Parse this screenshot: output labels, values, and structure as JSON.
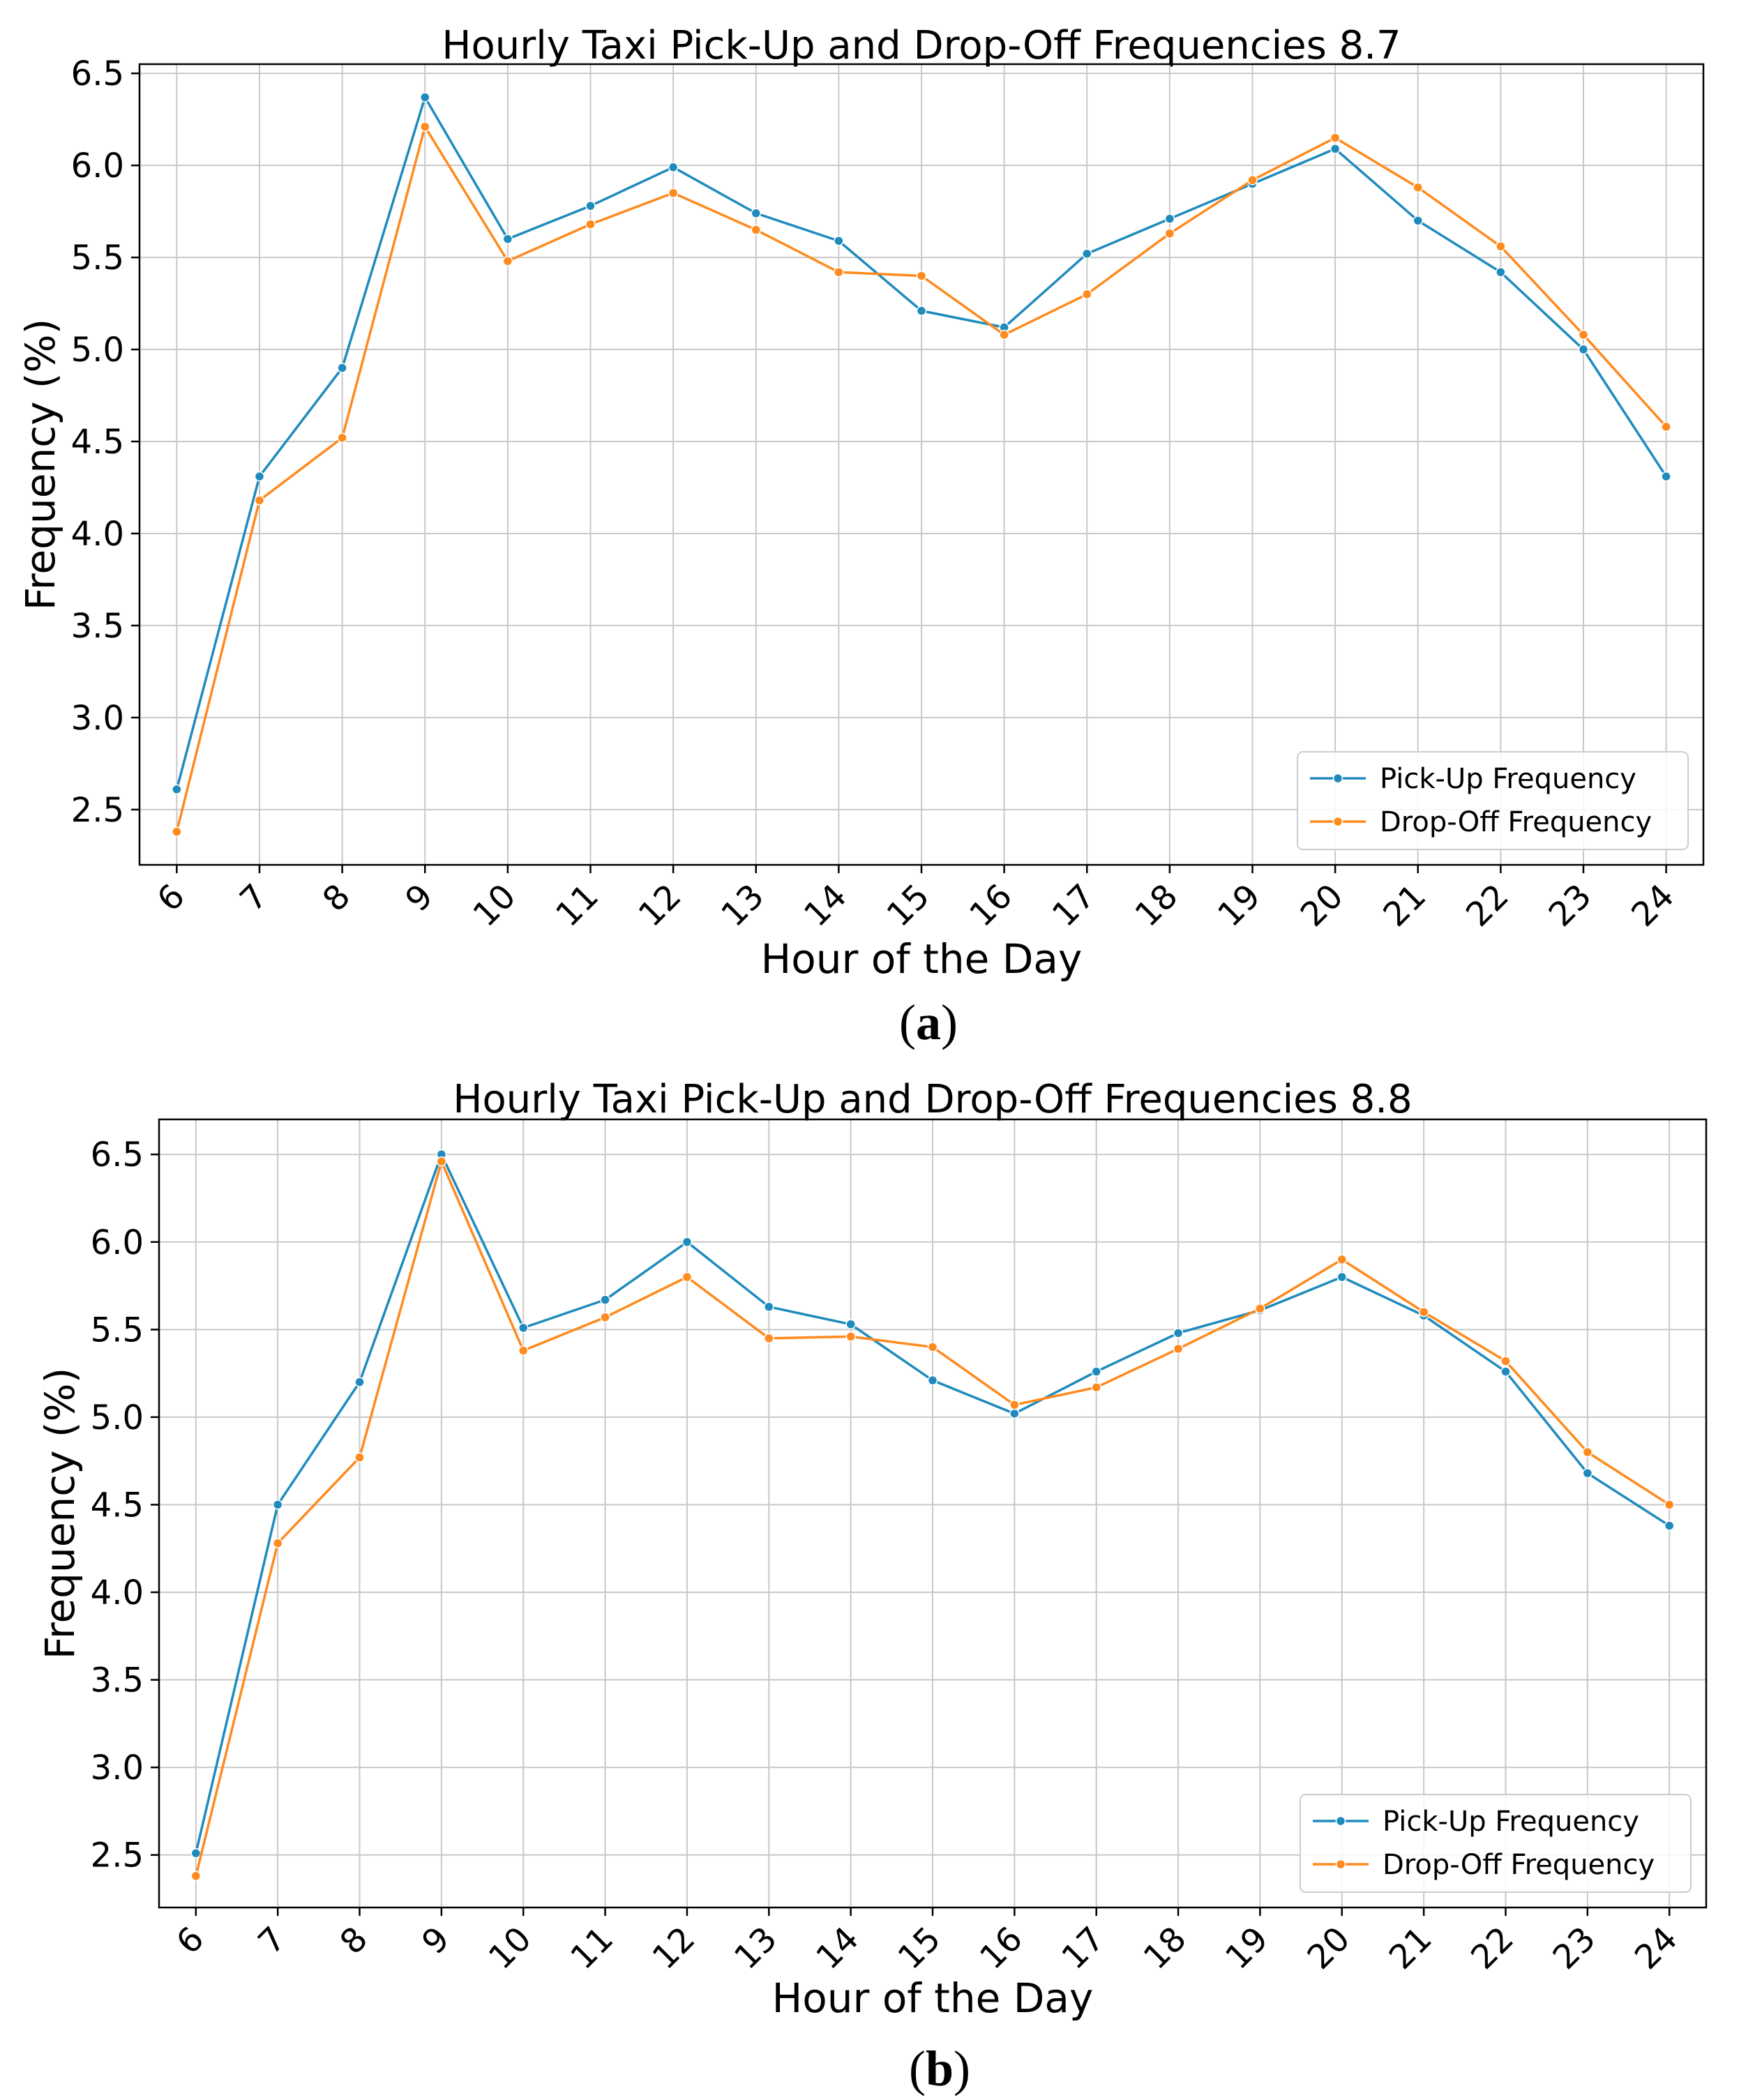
{
  "colors": {
    "pickup": "#1f8bbd",
    "dropoff": "#ff8a1e",
    "grid": "#c8c8c8",
    "axis": "#000000"
  },
  "chart_data": [
    {
      "type": "line",
      "title": "Hourly Taxi Pick-Up and Drop-Off Frequencies 8.7",
      "xlabel": "Hour of the Day",
      "ylabel": "Frequency (%)",
      "caption": {
        "open": "(",
        "letter": "a",
        "close": ")"
      },
      "x": [
        6,
        7,
        8,
        9,
        10,
        11,
        12,
        13,
        14,
        15,
        16,
        17,
        18,
        19,
        20,
        21,
        22,
        23,
        24
      ],
      "x_tick_labels": [
        "6",
        "7",
        "8",
        "9",
        "10",
        "11",
        "12",
        "13",
        "14",
        "15",
        "16",
        "17",
        "18",
        "19",
        "20",
        "21",
        "22",
        "23",
        "24"
      ],
      "y_ticks": [
        2.5,
        3.0,
        3.5,
        4.0,
        4.5,
        5.0,
        5.5,
        6.0,
        6.5
      ],
      "y_tick_labels": [
        "2.5",
        "3.0",
        "3.5",
        "4.0",
        "4.5",
        "5.0",
        "5.5",
        "6.0",
        "6.5"
      ],
      "ylim": [
        2.2,
        6.55
      ],
      "grid": true,
      "legend_position": "lower-right",
      "series": [
        {
          "name": "Pick-Up Frequency",
          "color_key": "pickup",
          "values": [
            2.61,
            4.31,
            4.9,
            6.37,
            5.6,
            5.78,
            5.99,
            5.74,
            5.59,
            5.21,
            5.12,
            5.52,
            5.71,
            5.9,
            6.09,
            5.7,
            5.42,
            5.0,
            4.31
          ]
        },
        {
          "name": "Drop-Off Frequency",
          "color_key": "dropoff",
          "values": [
            2.38,
            4.18,
            4.52,
            6.21,
            5.48,
            5.68,
            5.85,
            5.65,
            5.42,
            5.4,
            5.08,
            5.3,
            5.63,
            5.92,
            6.15,
            5.88,
            5.56,
            5.08,
            4.58
          ]
        }
      ]
    },
    {
      "type": "line",
      "title": "Hourly Taxi Pick-Up and Drop-Off Frequencies 8.8",
      "xlabel": "Hour of the Day",
      "ylabel": "Frequency (%)",
      "caption": {
        "open": "(",
        "letter": "b",
        "close": ")"
      },
      "x": [
        6,
        7,
        8,
        9,
        10,
        11,
        12,
        13,
        14,
        15,
        16,
        17,
        18,
        19,
        20,
        21,
        22,
        23,
        24
      ],
      "x_tick_labels": [
        "6",
        "7",
        "8",
        "9",
        "10",
        "11",
        "12",
        "13",
        "14",
        "15",
        "16",
        "17",
        "18",
        "19",
        "20",
        "21",
        "22",
        "23",
        "24"
      ],
      "y_ticks": [
        2.5,
        3.0,
        3.5,
        4.0,
        4.5,
        5.0,
        5.5,
        6.0,
        6.5
      ],
      "y_tick_labels": [
        "2.5",
        "3.0",
        "3.5",
        "4.0",
        "4.5",
        "5.0",
        "5.5",
        "6.0",
        "6.5"
      ],
      "ylim": [
        2.2,
        6.7
      ],
      "grid": true,
      "legend_position": "lower-right",
      "series": [
        {
          "name": "Pick-Up Frequency",
          "color_key": "pickup",
          "values": [
            2.51,
            4.5,
            5.2,
            6.5,
            5.51,
            5.67,
            6.0,
            5.63,
            5.53,
            5.21,
            5.02,
            5.26,
            5.48,
            5.61,
            5.8,
            5.58,
            5.26,
            4.68,
            4.38
          ]
        },
        {
          "name": "Drop-Off Frequency",
          "color_key": "dropoff",
          "values": [
            2.38,
            4.28,
            4.77,
            6.46,
            5.38,
            5.57,
            5.8,
            5.45,
            5.46,
            5.4,
            5.07,
            5.17,
            5.39,
            5.62,
            5.9,
            5.6,
            5.32,
            4.8,
            4.5
          ]
        }
      ]
    }
  ]
}
